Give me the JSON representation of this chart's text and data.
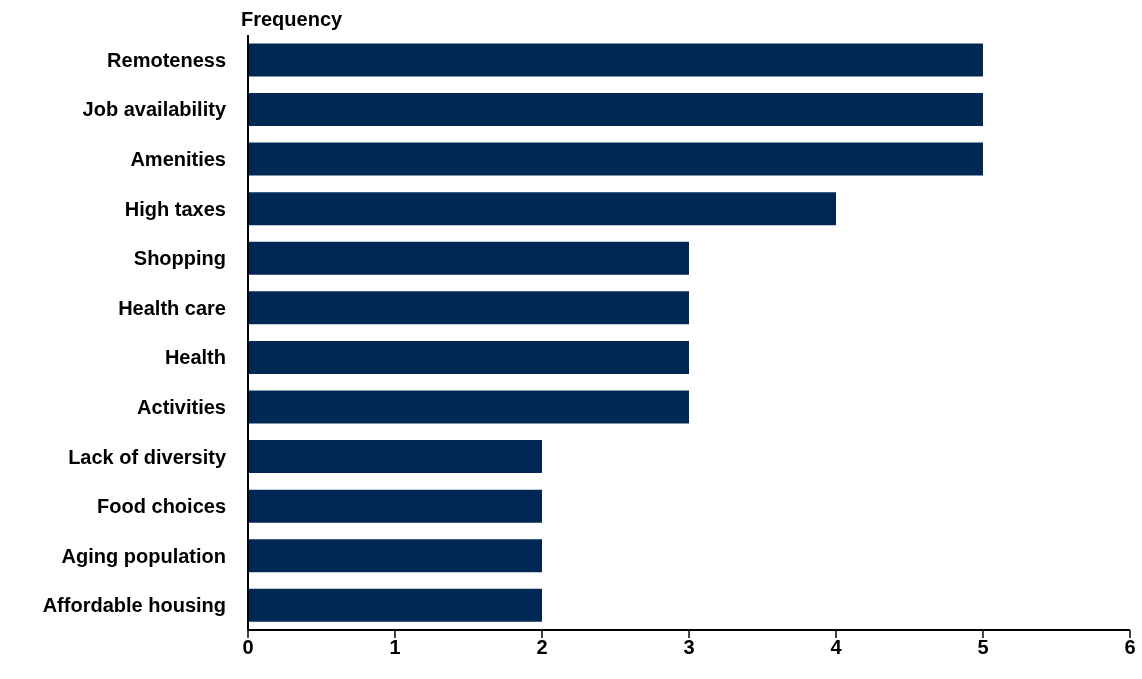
{
  "chart_data": {
    "type": "bar",
    "orientation": "horizontal",
    "xlabel": "Frequency",
    "categories": [
      "Remoteness",
      "Job availability",
      "Amenities",
      "High taxes",
      "Shopping",
      "Health care",
      "Health",
      "Activities",
      "Lack of diversity",
      "Food choices",
      "Aging population",
      "Affordable housing"
    ],
    "values": [
      5,
      5,
      5,
      4,
      3,
      3,
      3,
      3,
      2,
      2,
      2,
      2
    ],
    "color": "#002855",
    "xlim": [
      0,
      6
    ],
    "xticks": [
      0,
      1,
      2,
      3,
      4,
      5,
      6
    ],
    "grid": false,
    "legend": false
  }
}
